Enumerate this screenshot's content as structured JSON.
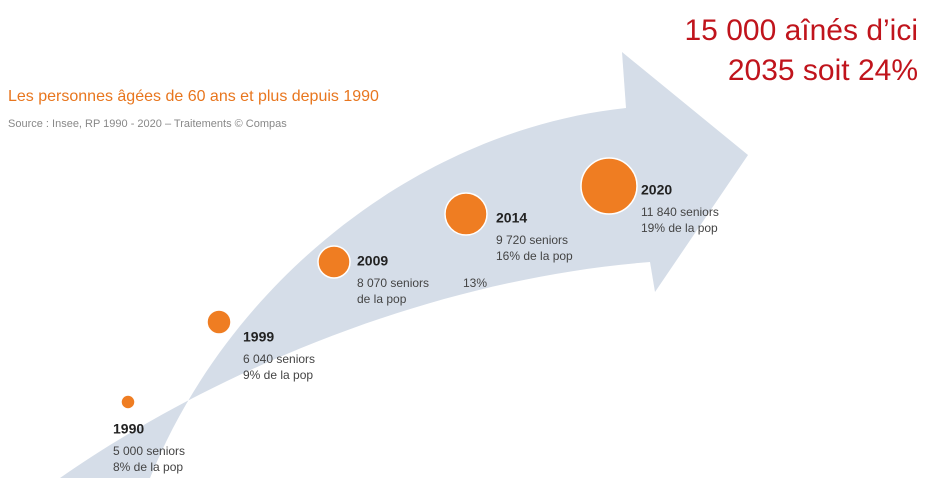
{
  "headline": [
    "15 000 aînés d’ici",
    "2035 soit 24%"
  ],
  "title": "Les personnes âgées de 60 ans et plus depuis 1990",
  "source": "Source : Insee, RP 1990 - 2020 – Traitements © Compas",
  "milestones": [
    {
      "year": "1990",
      "lines": [
        "5 000 seniors",
        "8% de la pop"
      ]
    },
    {
      "year": "1999",
      "lines": [
        "6 040 seniors",
        "9% de la pop"
      ]
    },
    {
      "year": "2009",
      "lines": [
        "8 070 seniors",
        "de la pop"
      ]
    },
    {
      "year": "2014",
      "lines": [
        "9 720 seniors",
        "16% de la pop"
      ]
    },
    {
      "year": "2020",
      "lines": [
        "11 840 seniors",
        "19% de la pop"
      ]
    }
  ],
  "annotation": "13%"
}
